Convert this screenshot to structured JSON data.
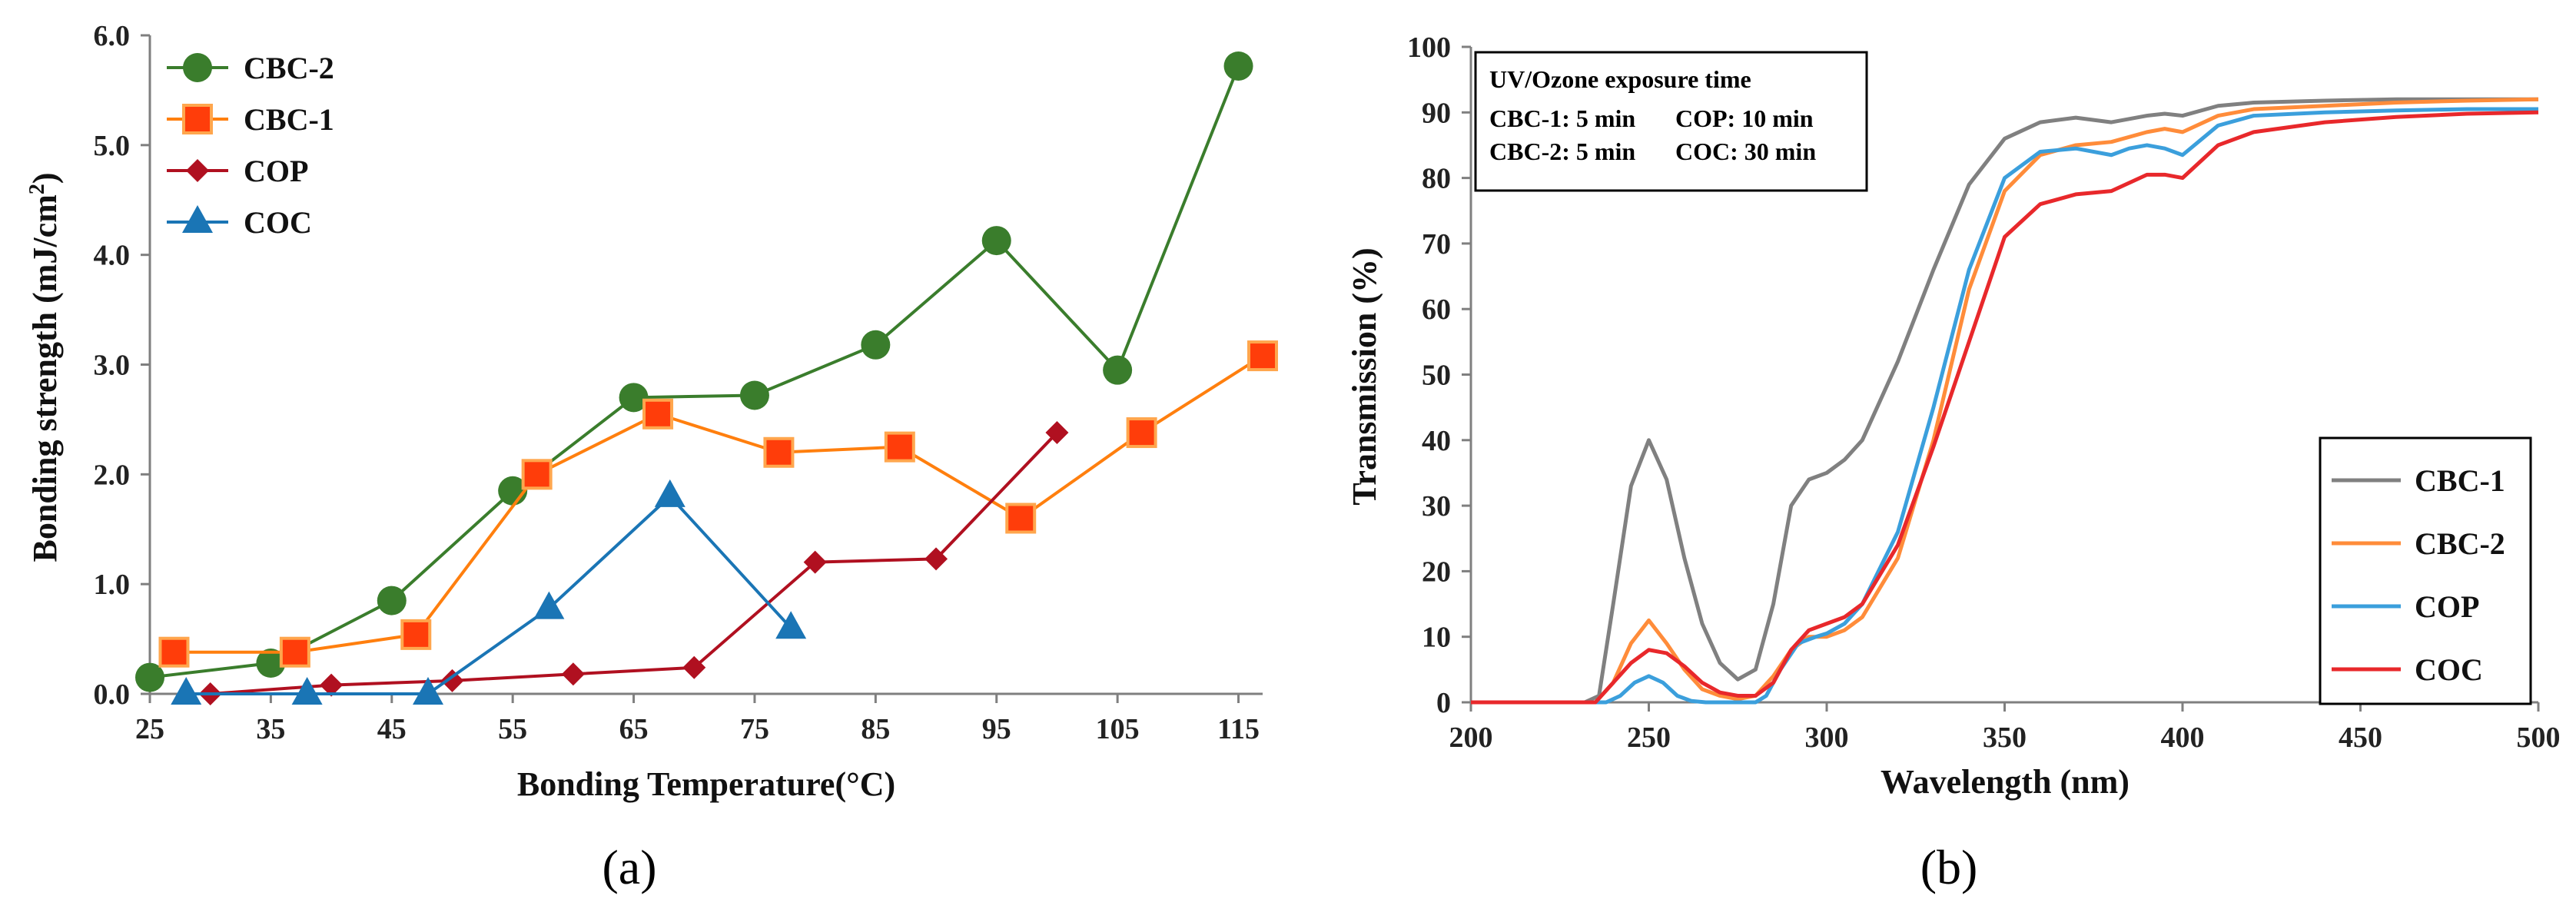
{
  "chart_data": [
    {
      "panel_label": "(a)",
      "type": "line",
      "xlabel": "Bonding Temperature(°C)",
      "ylabel_main": "Bonding strength  (mJ/cm",
      "ylabel_sup": "2",
      "ylabel_end": ")",
      "xlim": [
        25,
        117
      ],
      "ylim": [
        0,
        6
      ],
      "x_ticks": [
        25,
        35,
        45,
        55,
        65,
        75,
        85,
        95,
        105,
        115
      ],
      "y_ticks": [
        0,
        1,
        2,
        3,
        4,
        5,
        6
      ],
      "y_tick_labels": [
        "0.0",
        "1.0",
        "2.0",
        "3.0",
        "4.0",
        "5.0",
        "6.0"
      ],
      "grid": false,
      "legend_position": "top-left",
      "series": [
        {
          "name": "CBC-2",
          "color": "#3a7d2c",
          "marker": "circle",
          "x": [
            25,
            35,
            45,
            55,
            65,
            75,
            85,
            95,
            105,
            115
          ],
          "y": [
            0.15,
            0.28,
            0.85,
            1.85,
            2.7,
            2.72,
            3.18,
            4.13,
            2.95,
            5.72
          ]
        },
        {
          "name": "CBC-1",
          "color": "#ff7f0e",
          "marker": "square",
          "x": [
            27,
            37,
            47,
            57,
            67,
            77,
            87,
            97,
            107,
            117
          ],
          "y": [
            0.38,
            0.38,
            0.54,
            2.0,
            2.55,
            2.2,
            2.25,
            1.6,
            2.38,
            3.08
          ]
        },
        {
          "name": "COP",
          "color": "#b01020",
          "marker": "diamond",
          "x": [
            30,
            40,
            50,
            60,
            70,
            80,
            90,
            100
          ],
          "y": [
            0.0,
            0.08,
            0.12,
            0.18,
            0.24,
            1.2,
            1.23,
            2.38
          ]
        },
        {
          "name": "COC",
          "color": "#1a75b5",
          "marker": "triangle",
          "x": [
            28,
            38,
            48,
            58,
            68,
            78
          ],
          "y": [
            0.0,
            0.0,
            0.0,
            0.78,
            1.8,
            0.6
          ]
        }
      ]
    },
    {
      "panel_label": "(b)",
      "type": "line",
      "xlabel": "Wavelength (nm)",
      "ylabel": "Transmission  (%)",
      "xlim": [
        200,
        500
      ],
      "ylim": [
        0,
        100
      ],
      "x_ticks": [
        200,
        250,
        300,
        350,
        400,
        450,
        500
      ],
      "y_ticks": [
        0,
        10,
        20,
        30,
        40,
        50,
        60,
        70,
        80,
        90,
        100
      ],
      "grid": false,
      "legend_position": "bottom-right",
      "annotation": {
        "title": "UV/Ozone exposure time",
        "lines": [
          [
            "CBC-1: 5 min",
            "COP: 10 min"
          ],
          [
            "CBC-2: 5 min",
            "COC: 30 min"
          ]
        ]
      },
      "series": [
        {
          "name": "CBC-1",
          "color": "#808080",
          "x": [
            200,
            232,
            236,
            240,
            245,
            250,
            255,
            260,
            265,
            270,
            275,
            280,
            285,
            290,
            295,
            300,
            305,
            310,
            320,
            330,
            340,
            350,
            360,
            370,
            380,
            390,
            395,
            400,
            410,
            420,
            440,
            460,
            480,
            500
          ],
          "y": [
            0,
            0,
            1,
            15,
            33,
            40,
            34,
            22,
            12,
            6,
            3.5,
            5,
            15,
            30,
            34,
            35,
            37,
            40,
            52,
            66,
            79,
            86,
            88.5,
            89.2,
            88.5,
            89.5,
            89.8,
            89.5,
            91,
            91.5,
            91.8,
            92,
            92,
            92
          ]
        },
        {
          "name": "CBC-2",
          "color": "#ff8c3a",
          "x": [
            200,
            235,
            240,
            245,
            250,
            255,
            260,
            265,
            270,
            275,
            280,
            285,
            290,
            295,
            300,
            305,
            310,
            320,
            330,
            340,
            350,
            360,
            370,
            380,
            390,
            395,
            400,
            410,
            420,
            440,
            460,
            480,
            500
          ],
          "y": [
            0,
            0,
            3,
            9,
            12.5,
            9,
            5,
            2,
            1,
            0.5,
            1,
            4,
            8,
            10,
            10,
            11,
            13,
            22,
            40,
            63,
            78,
            83.5,
            85,
            85.5,
            87,
            87.5,
            87,
            89.5,
            90.5,
            91,
            91.5,
            91.8,
            92
          ]
        },
        {
          "name": "COP",
          "color": "#3b9fdc",
          "x": [
            200,
            238,
            242,
            246,
            250,
            254,
            258,
            262,
            266,
            280,
            283,
            287,
            292,
            297,
            300,
            305,
            310,
            320,
            330,
            340,
            350,
            360,
            370,
            380,
            385,
            390,
            395,
            400,
            410,
            420,
            440,
            460,
            480,
            500
          ],
          "y": [
            0,
            0,
            1,
            3,
            4,
            3,
            1,
            0.2,
            0,
            0,
            1,
            5,
            9,
            10,
            10.5,
            12,
            15,
            26,
            45,
            66,
            80,
            84,
            84.5,
            83.5,
            84.5,
            85,
            84.5,
            83.5,
            88,
            89.5,
            90,
            90.3,
            90.5,
            90.5
          ]
        },
        {
          "name": "COC",
          "color": "#e8282b",
          "x": [
            200,
            235,
            240,
            245,
            250,
            255,
            260,
            265,
            270,
            275,
            280,
            285,
            290,
            295,
            300,
            305,
            310,
            320,
            330,
            340,
            350,
            360,
            370,
            380,
            390,
            395,
            400,
            410,
            420,
            440,
            460,
            480,
            500
          ],
          "y": [
            0,
            0,
            3,
            6,
            8,
            7.5,
            5.5,
            3,
            1.5,
            1,
            1,
            3,
            8,
            11,
            12,
            13,
            15,
            24,
            39,
            55,
            71,
            76,
            77.5,
            78,
            80.5,
            80.5,
            80,
            85,
            87,
            88.5,
            89.3,
            89.8,
            90
          ]
        }
      ]
    }
  ]
}
